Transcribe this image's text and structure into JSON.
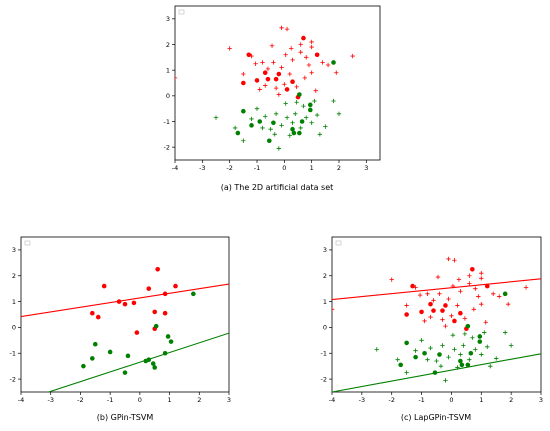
{
  "chart_data": [
    {
      "type": "scatter",
      "caption": "(a) The 2D artificial data set",
      "xlim": [
        -4,
        3.5
      ],
      "ylim": [
        -2.5,
        3.5
      ],
      "xticks": [
        "-4",
        "-3",
        "-2",
        "-1",
        "0",
        "1",
        "2",
        "3"
      ],
      "yticks": [
        "-2",
        "-1",
        "0",
        "1",
        "2",
        "3"
      ],
      "grid": false,
      "legend": "top-left",
      "colors": {
        "positive": "#ff0000",
        "negative": "#008000"
      },
      "labeled_pos": [
        [
          -1.3,
          1.6
        ],
        [
          -0.7,
          0.9
        ],
        [
          -1.0,
          0.6
        ],
        [
          -0.3,
          0.65
        ],
        [
          0.7,
          2.25
        ],
        [
          -1.5,
          0.5
        ],
        [
          0.3,
          0.55
        ],
        [
          -0.6,
          0.65
        ],
        [
          1.2,
          1.6
        ],
        [
          0.1,
          0.25
        ],
        [
          0.5,
          -0.05
        ],
        [
          -0.2,
          0.85
        ]
      ],
      "labeled_neg": [
        [
          -1.5,
          -0.6
        ],
        [
          -1.2,
          -1.15
        ],
        [
          -1.7,
          -1.45
        ],
        [
          -0.9,
          -1.0
        ],
        [
          -0.4,
          -1.05
        ],
        [
          -0.55,
          -1.75
        ],
        [
          0.3,
          -1.3
        ],
        [
          0.55,
          -1.45
        ],
        [
          0.35,
          -1.45
        ],
        [
          0.95,
          -0.35
        ],
        [
          0.65,
          -1.0
        ],
        [
          0.95,
          -0.55
        ],
        [
          1.8,
          1.3
        ],
        [
          0.55,
          0.05
        ]
      ],
      "unlabeled_pos": [
        [
          -2.0,
          1.85
        ],
        [
          -1.2,
          1.55
        ],
        [
          -1.05,
          1.25
        ],
        [
          -0.8,
          1.3
        ],
        [
          -0.6,
          1.05
        ],
        [
          -0.4,
          1.3
        ],
        [
          -0.1,
          1.1
        ],
        [
          0.05,
          1.6
        ],
        [
          0.3,
          1.4
        ],
        [
          0.6,
          1.7
        ],
        [
          0.8,
          1.5
        ],
        [
          1.0,
          1.9
        ],
        [
          1.4,
          1.3
        ],
        [
          1.6,
          1.2
        ],
        [
          2.5,
          1.55
        ],
        [
          -0.1,
          2.65
        ],
        [
          0.1,
          2.6
        ],
        [
          0.6,
          2.0
        ],
        [
          1.0,
          2.1
        ],
        [
          -0.3,
          0.3
        ],
        [
          0.0,
          0.45
        ],
        [
          0.2,
          0.85
        ],
        [
          0.45,
          0.35
        ],
        [
          0.75,
          0.7
        ],
        [
          1.0,
          0.9
        ],
        [
          1.15,
          0.2
        ],
        [
          -0.9,
          0.25
        ],
        [
          -0.7,
          0.4
        ],
        [
          -0.2,
          0.05
        ],
        [
          -4.0,
          0.7
        ],
        [
          -1.5,
          0.85
        ],
        [
          -0.45,
          1.95
        ],
        [
          0.25,
          1.85
        ],
        [
          0.9,
          1.2
        ],
        [
          1.9,
          0.9
        ]
      ],
      "unlabeled_neg": [
        [
          -2.5,
          -0.85
        ],
        [
          -1.8,
          -1.25
        ],
        [
          -1.5,
          -1.75
        ],
        [
          -1.2,
          -0.9
        ],
        [
          -1.0,
          -0.5
        ],
        [
          -0.7,
          -0.8
        ],
        [
          -0.5,
          -1.3
        ],
        [
          -0.3,
          -0.7
        ],
        [
          -0.1,
          -1.15
        ],
        [
          0.1,
          -0.85
        ],
        [
          0.2,
          -1.55
        ],
        [
          0.4,
          -0.7
        ],
        [
          0.6,
          -1.25
        ],
        [
          0.8,
          -0.85
        ],
        [
          1.0,
          -1.05
        ],
        [
          1.2,
          -0.75
        ],
        [
          1.5,
          -1.2
        ],
        [
          1.8,
          -0.2
        ],
        [
          2.0,
          -0.7
        ],
        [
          -0.2,
          -2.05
        ],
        [
          0.3,
          -1.05
        ],
        [
          0.7,
          -0.4
        ],
        [
          1.3,
          -1.5
        ],
        [
          0.05,
          -0.3
        ],
        [
          -0.8,
          -1.25
        ],
        [
          0.45,
          -0.25
        ],
        [
          1.1,
          -0.2
        ],
        [
          -0.35,
          -1.5
        ]
      ]
    },
    {
      "type": "scatter",
      "caption": "(b) GPin-TSVM",
      "xlim": [
        -4,
        3
      ],
      "ylim": [
        -2.5,
        3.5
      ],
      "xticks": [
        "-4",
        "-3",
        "-2",
        "-1",
        "0",
        "1",
        "2",
        "3"
      ],
      "yticks": [
        "-2",
        "-1",
        "0",
        "1",
        "2",
        "3"
      ],
      "grid": false,
      "legend": "top-left",
      "colors": {
        "positive": "#ff0000",
        "negative": "#008000"
      },
      "lines": [
        {
          "color": "#ff0000",
          "x": [
            -4,
            3
          ],
          "y": [
            0.42,
            1.68
          ]
        },
        {
          "color": "#008000",
          "x": [
            -4,
            3
          ],
          "y": [
            -2.85,
            -0.22
          ]
        }
      ],
      "labeled_pos": [
        [
          -1.2,
          1.6
        ],
        [
          -0.7,
          1.0
        ],
        [
          -1.6,
          0.55
        ],
        [
          -1.4,
          0.4
        ],
        [
          -0.2,
          0.95
        ],
        [
          0.6,
          2.25
        ],
        [
          0.3,
          1.5
        ],
        [
          -0.1,
          -0.2
        ],
        [
          0.85,
          1.3
        ],
        [
          1.2,
          1.6
        ],
        [
          0.5,
          0.6
        ],
        [
          0.85,
          0.55
        ],
        [
          0.5,
          -0.05
        ],
        [
          -0.5,
          0.9
        ]
      ],
      "labeled_neg": [
        [
          -1.9,
          -1.5
        ],
        [
          -1.6,
          -1.2
        ],
        [
          -1.5,
          -0.65
        ],
        [
          -1.0,
          -0.95
        ],
        [
          -0.4,
          -1.1
        ],
        [
          -0.5,
          -1.75
        ],
        [
          0.2,
          -1.3
        ],
        [
          0.45,
          -1.4
        ],
        [
          0.5,
          -1.55
        ],
        [
          0.3,
          -1.25
        ],
        [
          0.85,
          -1.0
        ],
        [
          0.95,
          -0.35
        ],
        [
          1.05,
          -0.55
        ],
        [
          1.8,
          1.3
        ],
        [
          0.55,
          0.05
        ]
      ]
    },
    {
      "type": "scatter",
      "caption": "(c) LapGPin-TSVM",
      "xlim": [
        -4,
        3
      ],
      "ylim": [
        -2.5,
        3.5
      ],
      "xticks": [
        "-4",
        "-3",
        "-2",
        "-1",
        "0",
        "1",
        "2",
        "3"
      ],
      "yticks": [
        "-2",
        "-1",
        "0",
        "1",
        "2",
        "3"
      ],
      "grid": false,
      "legend": "top-left",
      "colors": {
        "positive": "#ff0000",
        "negative": "#008000"
      },
      "lines": [
        {
          "color": "#ff0000",
          "x": [
            -4,
            3
          ],
          "y": [
            1.08,
            1.88
          ]
        },
        {
          "color": "#008000",
          "x": [
            -4,
            3
          ],
          "y": [
            -2.5,
            -1.02
          ]
        }
      ],
      "labeled_pos": [
        [
          -1.3,
          1.6
        ],
        [
          -0.7,
          0.9
        ],
        [
          -1.0,
          0.6
        ],
        [
          -0.3,
          0.65
        ],
        [
          0.7,
          2.25
        ],
        [
          -1.5,
          0.5
        ],
        [
          0.3,
          0.55
        ],
        [
          -0.6,
          0.65
        ],
        [
          1.2,
          1.6
        ],
        [
          0.1,
          0.25
        ],
        [
          0.5,
          -0.05
        ],
        [
          -0.2,
          0.85
        ]
      ],
      "labeled_neg": [
        [
          -1.5,
          -0.6
        ],
        [
          -1.2,
          -1.15
        ],
        [
          -1.7,
          -1.45
        ],
        [
          -0.9,
          -1.0
        ],
        [
          -0.4,
          -1.05
        ],
        [
          -0.55,
          -1.75
        ],
        [
          0.3,
          -1.3
        ],
        [
          0.55,
          -1.45
        ],
        [
          0.35,
          -1.45
        ],
        [
          0.95,
          -0.35
        ],
        [
          0.65,
          -1.0
        ],
        [
          0.95,
          -0.55
        ],
        [
          1.8,
          1.3
        ],
        [
          0.55,
          0.05
        ]
      ],
      "unlabeled_pos": [
        [
          -2.0,
          1.85
        ],
        [
          -1.2,
          1.55
        ],
        [
          -1.05,
          1.25
        ],
        [
          -0.8,
          1.3
        ],
        [
          -0.6,
          1.05
        ],
        [
          -0.4,
          1.3
        ],
        [
          -0.1,
          1.1
        ],
        [
          0.05,
          1.6
        ],
        [
          0.3,
          1.4
        ],
        [
          0.6,
          1.7
        ],
        [
          0.8,
          1.5
        ],
        [
          1.0,
          1.9
        ],
        [
          1.4,
          1.3
        ],
        [
          1.6,
          1.2
        ],
        [
          2.5,
          1.55
        ],
        [
          -0.1,
          2.65
        ],
        [
          0.1,
          2.6
        ],
        [
          0.6,
          2.0
        ],
        [
          1.0,
          2.1
        ],
        [
          -0.3,
          0.3
        ],
        [
          0.0,
          0.45
        ],
        [
          0.2,
          0.85
        ],
        [
          0.45,
          0.35
        ],
        [
          0.75,
          0.7
        ],
        [
          1.0,
          0.9
        ],
        [
          1.15,
          0.2
        ],
        [
          -0.9,
          0.25
        ],
        [
          -0.7,
          0.4
        ],
        [
          -0.2,
          0.05
        ],
        [
          -4.0,
          0.7
        ],
        [
          -1.5,
          0.85
        ],
        [
          -0.45,
          1.95
        ],
        [
          0.25,
          1.85
        ],
        [
          0.9,
          1.2
        ],
        [
          1.9,
          0.9
        ]
      ],
      "unlabeled_neg": [
        [
          -2.5,
          -0.85
        ],
        [
          -1.8,
          -1.25
        ],
        [
          -1.5,
          -1.75
        ],
        [
          -1.2,
          -0.9
        ],
        [
          -1.0,
          -0.5
        ],
        [
          -0.7,
          -0.8
        ],
        [
          -0.5,
          -1.3
        ],
        [
          -0.3,
          -0.7
        ],
        [
          -0.1,
          -1.15
        ],
        [
          0.1,
          -0.85
        ],
        [
          0.2,
          -1.55
        ],
        [
          0.4,
          -0.7
        ],
        [
          0.6,
          -1.25
        ],
        [
          0.8,
          -0.85
        ],
        [
          1.0,
          -1.05
        ],
        [
          1.2,
          -0.75
        ],
        [
          1.5,
          -1.2
        ],
        [
          1.8,
          -0.2
        ],
        [
          2.0,
          -0.7
        ],
        [
          -0.2,
          -2.05
        ],
        [
          0.3,
          -1.05
        ],
        [
          0.7,
          -0.4
        ],
        [
          1.3,
          -1.5
        ],
        [
          0.05,
          -0.3
        ],
        [
          -0.8,
          -1.25
        ],
        [
          0.45,
          -0.25
        ],
        [
          1.1,
          -0.2
        ],
        [
          -0.35,
          -1.5
        ]
      ]
    }
  ]
}
